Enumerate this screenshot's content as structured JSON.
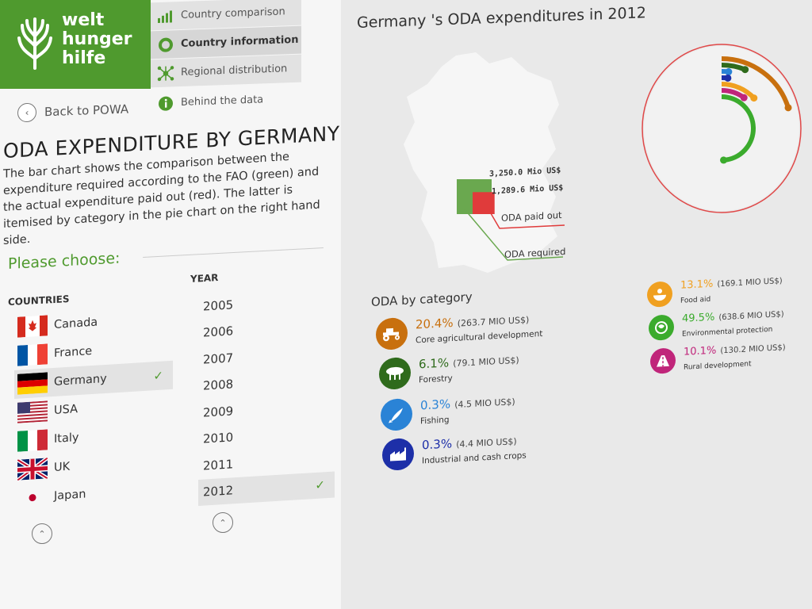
{
  "brand": {
    "lines": [
      "welt",
      "hunger",
      "hilfe"
    ]
  },
  "nav": {
    "country_comparison": "Country comparison",
    "country_information": "Country information",
    "regional_distribution": "Regional distribution",
    "behind_the_data": "Behind the data",
    "back": "Back to POWA"
  },
  "page": {
    "title": "ODA EXPENDITURE BY GERMANY",
    "description": "The bar chart shows the comparison between the expenditure required according to the FAO (green) and the actual expenditure paid out (red). The latter is itemised by category in the pie chart on the right hand side.",
    "choose": "Please choose:",
    "countries_header": "COUNTRIES",
    "year_header": "YEAR"
  },
  "countries": [
    "Canada",
    "France",
    "Germany",
    "USA",
    "Italy",
    "UK",
    "Japan"
  ],
  "selected_country": "Germany",
  "years": [
    "2005",
    "2006",
    "2007",
    "2008",
    "2009",
    "2010",
    "2011",
    "2012"
  ],
  "selected_year": "2012",
  "chart": {
    "title": "Germany 's ODA expenditures in 2012",
    "required_value": "3,250.0 Mio US$",
    "paid_value": "1,289.6 Mio US$",
    "paid_label": "ODA paid out",
    "required_label": "ODA required",
    "category_title": "ODA by category"
  },
  "chart_data": {
    "type": "bar",
    "categories": [
      "ODA required",
      "ODA paid out"
    ],
    "values": [
      3250.0,
      1289.6
    ],
    "breakdown": [
      {
        "name": "Core agricultural development",
        "pct": 20.4,
        "value": 263.7
      },
      {
        "name": "Forestry",
        "pct": 6.1,
        "value": 79.1
      },
      {
        "name": "Fishing",
        "pct": 0.3,
        "value": 4.5
      },
      {
        "name": "Industrial and cash crops",
        "pct": 0.3,
        "value": 4.4
      },
      {
        "name": "Food aid",
        "pct": 13.1,
        "value": 169.1
      },
      {
        "name": "Environmental protection",
        "pct": 49.5,
        "value": 638.6
      },
      {
        "name": "Rural development",
        "pct": 10.1,
        "value": 130.2
      }
    ]
  },
  "categories": [
    {
      "pct": "20.4%",
      "amount": "(263.7 MIO US$)",
      "name": "Core agricultural development",
      "color": "#c8700e",
      "icon": "tractor-icon"
    },
    {
      "pct": "6.1%",
      "amount": "(79.1 MIO US$)",
      "name": "Forestry",
      "color": "#2f6b1c",
      "icon": "tree-icon"
    },
    {
      "pct": "0.3%",
      "amount": "(4.5 MIO US$)",
      "name": "Fishing",
      "color": "#2a83d6",
      "icon": "fish-icon"
    },
    {
      "pct": "0.3%",
      "amount": "(4.4 MIO US$)",
      "name": "Industrial and cash crops",
      "color": "#1d2fa8",
      "icon": "factory-icon"
    },
    {
      "pct": "13.1%",
      "amount": "(169.1 MIO US$)",
      "name": "Food aid",
      "color": "#f0a020",
      "icon": "food-aid-icon"
    },
    {
      "pct": "49.5%",
      "amount": "(638.6 MIO US$)",
      "name": "Environmental protection",
      "color": "#3bab2d",
      "icon": "globe-icon"
    },
    {
      "pct": "10.1%",
      "amount": "(130.2 MIO US$)",
      "name": "Rural development",
      "color": "#c0257a",
      "icon": "road-icon"
    }
  ],
  "colors": {
    "brand_green": "#4f9a2e",
    "required_green": "#6aa84f",
    "paid_red": "#e03b3b"
  }
}
